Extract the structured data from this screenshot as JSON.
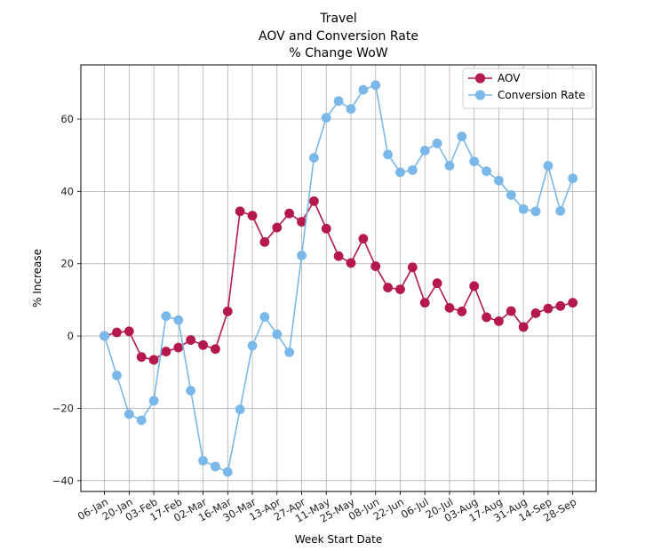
{
  "chart_data": {
    "type": "line",
    "title": [
      "Travel",
      "AOV and Conversion Rate",
      "% Change WoW"
    ],
    "xlabel": "Week Start Date",
    "ylabel": "% Increase",
    "ylim": [
      -43,
      75
    ],
    "yticks": [
      -40,
      -20,
      0,
      20,
      40,
      60
    ],
    "grid": true,
    "legend_position": "top-right",
    "xtick_labels": [
      "06-Jan",
      "20-Jan",
      "03-Feb",
      "17-Feb",
      "02-Mar",
      "16-Mar",
      "30-Mar",
      "13-Apr",
      "27-Apr",
      "11-May",
      "25-May",
      "08-Jun",
      "22-Jun",
      "06-Jul",
      "20-Jul",
      "03-Aug",
      "17-Aug",
      "31-Aug",
      "14-Sep",
      "28-Sep"
    ],
    "x": [
      "06-Jan",
      "13-Jan",
      "20-Jan",
      "27-Jan",
      "03-Feb",
      "10-Feb",
      "17-Feb",
      "24-Feb",
      "02-Mar",
      "09-Mar",
      "16-Mar",
      "23-Mar",
      "30-Mar",
      "06-Apr",
      "13-Apr",
      "20-Apr",
      "27-Apr",
      "04-May",
      "11-May",
      "18-May",
      "25-May",
      "01-Jun",
      "08-Jun",
      "15-Jun",
      "22-Jun",
      "29-Jun",
      "06-Jul",
      "13-Jul",
      "20-Jul",
      "27-Jul",
      "03-Aug",
      "10-Aug",
      "17-Aug",
      "24-Aug",
      "31-Aug",
      "07-Sep",
      "14-Sep",
      "21-Sep",
      "28-Sep"
    ],
    "series": [
      {
        "name": "AOV",
        "color": "#b5184a",
        "values": [
          0.0,
          1.0,
          1.3,
          -5.8,
          -6.6,
          -4.3,
          -3.2,
          -1.1,
          -2.5,
          -3.6,
          6.8,
          34.5,
          33.3,
          26.0,
          30.0,
          33.9,
          31.6,
          37.3,
          29.7,
          22.1,
          20.2,
          26.9,
          19.3,
          13.4,
          12.9,
          19.0,
          9.2,
          14.6,
          7.8,
          6.8,
          13.8,
          5.2,
          4.1,
          6.9,
          2.5,
          6.3,
          7.6,
          8.3,
          9.2
        ]
      },
      {
        "name": "Conversion Rate",
        "color": "#7ab8ea",
        "values": [
          0.0,
          -10.9,
          -21.6,
          -23.3,
          -17.9,
          5.5,
          4.4,
          -15.1,
          -34.5,
          -36.1,
          -37.6,
          -20.3,
          -2.7,
          5.3,
          0.5,
          -4.5,
          22.3,
          49.3,
          60.4,
          65.0,
          62.8,
          68.1,
          69.4,
          50.2,
          45.3,
          45.9,
          51.3,
          53.3,
          47.1,
          55.2,
          48.3,
          45.6,
          43.0,
          39.0,
          35.1,
          34.5,
          47.1,
          34.6,
          43.6
        ]
      }
    ]
  }
}
